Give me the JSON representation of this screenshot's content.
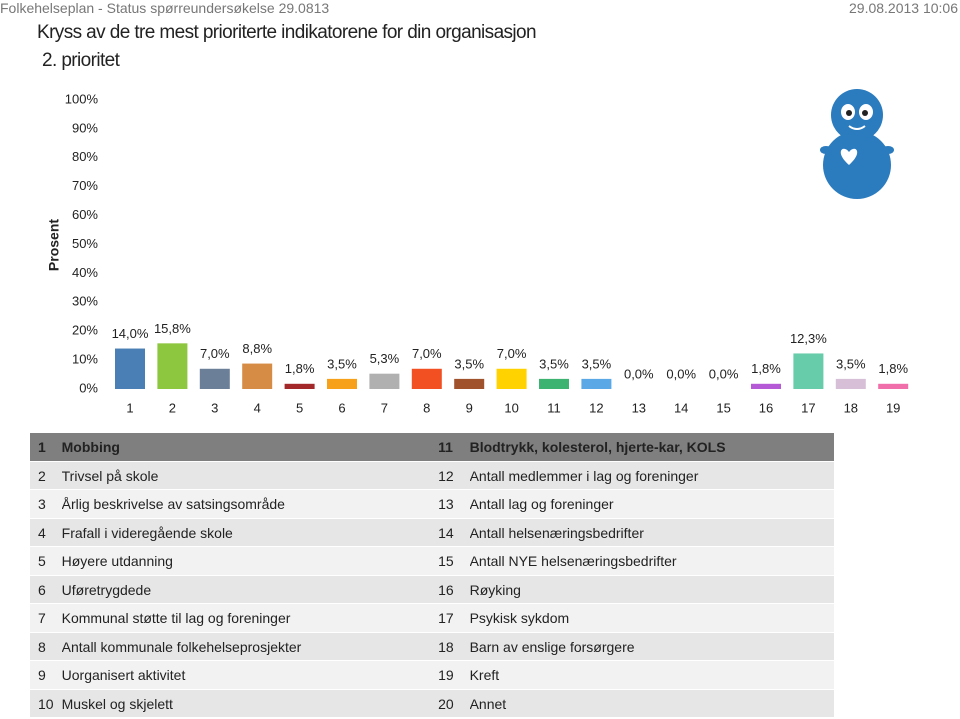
{
  "header": {
    "left": "Folkehelseplan - Status spørreundersøkelse 29.0813",
    "right": "29.08.2013 10:06"
  },
  "chart_data": {
    "type": "bar",
    "title": "Kryss av de tre mest prioriterte indikatorene for din organisasjon",
    "subtitle": "2. prioritet",
    "y_label": "Prosent",
    "categories": [
      "1",
      "2",
      "3",
      "4",
      "5",
      "6",
      "7",
      "8",
      "9",
      "10",
      "11",
      "12",
      "13",
      "14",
      "15",
      "16",
      "17",
      "18",
      "19"
    ],
    "values": [
      14.0,
      15.8,
      7.0,
      8.8,
      1.8,
      3.5,
      5.3,
      7.0,
      3.5,
      7.0,
      3.5,
      3.5,
      0.0,
      0.0,
      0.0,
      1.8,
      12.3,
      3.5,
      1.8
    ],
    "value_labels": [
      "14,0%",
      "15,8%",
      "7,0%",
      "8,8%",
      "1,8%",
      "3,5%",
      "5,3%",
      "7,0%",
      "3,5%",
      "7,0%",
      "3,5%",
      "3,5%",
      "0,0%",
      "0,0%",
      "0,0%",
      "1,8%",
      "12,3%",
      "3,5%",
      "1,8%"
    ],
    "colors": [
      "#4a7fb5",
      "#8dc63f",
      "#6b7f99",
      "#d68c45",
      "#a3282a",
      "#f7a11a",
      "#b0b0b0",
      "#f25022",
      "#a0522d",
      "#ffd200",
      "#3cb371",
      "#5aa9e6",
      "#7f7f7f",
      "#7f7f7f",
      "#7f7f7f",
      "#b659d6",
      "#66ccaa",
      "#d8bfd8",
      "#f06ea9"
    ],
    "ylim": [
      0,
      100
    ],
    "yticks": [
      {
        "value": 0,
        "label": "0%"
      },
      {
        "value": 10,
        "label": "10%"
      },
      {
        "value": 20,
        "label": "20%"
      },
      {
        "value": 30,
        "label": "30%"
      },
      {
        "value": 40,
        "label": "40%"
      },
      {
        "value": 50,
        "label": "50%"
      },
      {
        "value": 60,
        "label": "60%"
      },
      {
        "value": 70,
        "label": "70%"
      },
      {
        "value": 80,
        "label": "80%"
      },
      {
        "value": 90,
        "label": "90%"
      },
      {
        "value": 100,
        "label": "100%"
      }
    ],
    "grid": false
  },
  "table": {
    "rows": [
      [
        "1",
        "Mobbing",
        "11",
        "Blodtrykk, kolesterol, hjerte-kar, KOLS"
      ],
      [
        "2",
        "Trivsel på skole",
        "12",
        "Antall medlemmer i lag og foreninger"
      ],
      [
        "3",
        "Årlig beskrivelse av satsingsområde",
        "13",
        "Antall lag og foreninger"
      ],
      [
        "4",
        "Frafall i videregående skole",
        "14",
        "Antall helsenæringsbedrifter"
      ],
      [
        "5",
        "Høyere utdanning",
        "15",
        "Antall NYE helsenæringsbedrifter"
      ],
      [
        "6",
        "Uføretrygdede",
        "16",
        "Røyking"
      ],
      [
        "7",
        "Kommunal støtte til lag og foreninger",
        "17",
        "Psykisk sykdom"
      ],
      [
        "8",
        "Antall kommunale folkehelseprosjekter",
        "18",
        "Barn av enslige forsørgere"
      ],
      [
        "9",
        "Uorganisert aktivitet",
        "19",
        "Kreft"
      ],
      [
        "10",
        "Muskel og skjelett",
        "20",
        "Annet"
      ]
    ]
  }
}
